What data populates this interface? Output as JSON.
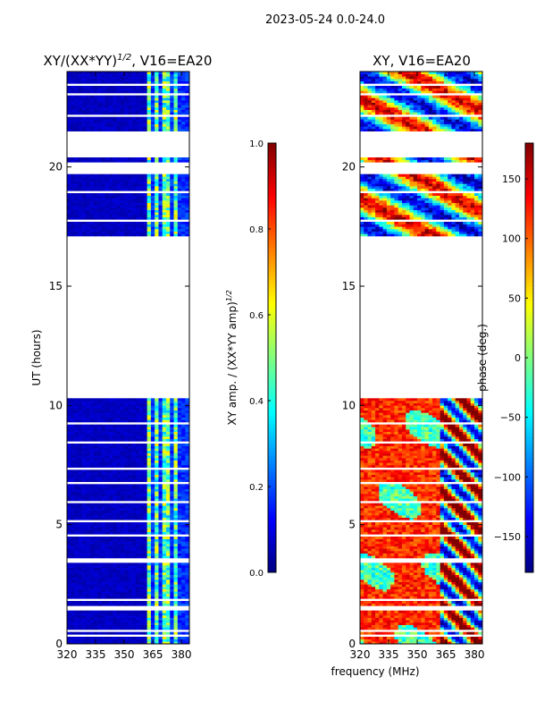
{
  "figure_title": "2023-05-24 0.0-24.0",
  "shared_xlabel": "frequency (MHz)",
  "chart_data": [
    {
      "type": "heatmap",
      "title_main": "XY/(XX*YY)",
      "title_sup": "1/2",
      "title_rest": ", V16=EA20",
      "ylabel": "UT (hours)",
      "xlabel": "frequency (MHz)",
      "xlim": [
        320,
        384.2
      ],
      "ylim": [
        0,
        24
      ],
      "xticks": [
        320,
        335,
        350,
        365,
        380
      ],
      "xtick_labels": [
        "320",
        "335",
        "350",
        "365",
        "380"
      ],
      "yticks": [
        0,
        5,
        10,
        15,
        20
      ],
      "ytick_labels": [
        "0",
        "5",
        "10",
        "15",
        "20"
      ],
      "colormap": "jet",
      "colorbar": {
        "label_main": "XY amp. / (XX*YY amp)",
        "label_sup": "1/2",
        "range": [
          0,
          1
        ],
        "ticks": [
          0.0,
          0.2,
          0.4,
          0.6,
          0.8,
          1.0
        ],
        "tick_labels": [
          "0.0",
          "0.2",
          "0.4",
          "0.6",
          "0.8",
          "1.0"
        ]
      },
      "pattern": "low amplitude (~0.05) below 361 MHz; elevated bands 362-364, 366-368, 370-373, 375-378 MHz (0.3-0.7)"
    },
    {
      "type": "heatmap",
      "title_main": "XY, V16=EA20",
      "xlabel": "frequency (MHz)",
      "xlim": [
        320,
        384.2
      ],
      "ylim": [
        0,
        24
      ],
      "xticks": [
        320,
        335,
        350,
        365,
        380
      ],
      "xtick_labels": [
        "320",
        "335",
        "350",
        "365",
        "380"
      ],
      "yticks": [
        0,
        5,
        10,
        15,
        20
      ],
      "ytick_labels": [
        "0",
        "5",
        "10",
        "15",
        "20"
      ],
      "colormap": "jet",
      "colorbar": {
        "label_main": "phase (deg.)",
        "range": [
          -180,
          180
        ],
        "ticks": [
          -150,
          -100,
          -50,
          0,
          50,
          100,
          150
        ],
        "tick_labels": [
          "−150",
          "−100",
          "−50",
          "0",
          "50",
          "100",
          "150"
        ]
      },
      "pattern": "phase mostly 90-150 deg below 10 UT with blue patches; mixed phase above 17 UT; wrapping structure above 361 MHz"
    }
  ],
  "flagged_ut_intervals": [
    [
      0.35,
      0.45
    ],
    [
      0.55,
      0.62
    ],
    [
      1.45,
      1.62
    ],
    [
      1.85,
      1.92
    ],
    [
      2.1,
      2.15
    ],
    [
      3.45,
      3.62
    ],
    [
      4.5,
      4.56
    ],
    [
      5.1,
      5.15
    ],
    [
      5.9,
      6.0
    ],
    [
      6.65,
      6.75
    ],
    [
      7.05,
      7.1
    ],
    [
      7.3,
      7.35
    ],
    [
      8.4,
      8.5
    ],
    [
      9.2,
      9.25
    ],
    [
      9.85,
      9.9
    ],
    [
      10.3,
      17.1
    ],
    [
      17.7,
      17.75
    ],
    [
      18.35,
      18.4
    ],
    [
      18.95,
      19.02
    ],
    [
      19.75,
      20.2
    ],
    [
      20.45,
      21.55
    ],
    [
      21.8,
      21.85
    ],
    [
      22.15,
      22.25
    ],
    [
      22.6,
      22.65
    ],
    [
      23.05,
      23.1
    ],
    [
      23.45,
      23.5
    ]
  ]
}
